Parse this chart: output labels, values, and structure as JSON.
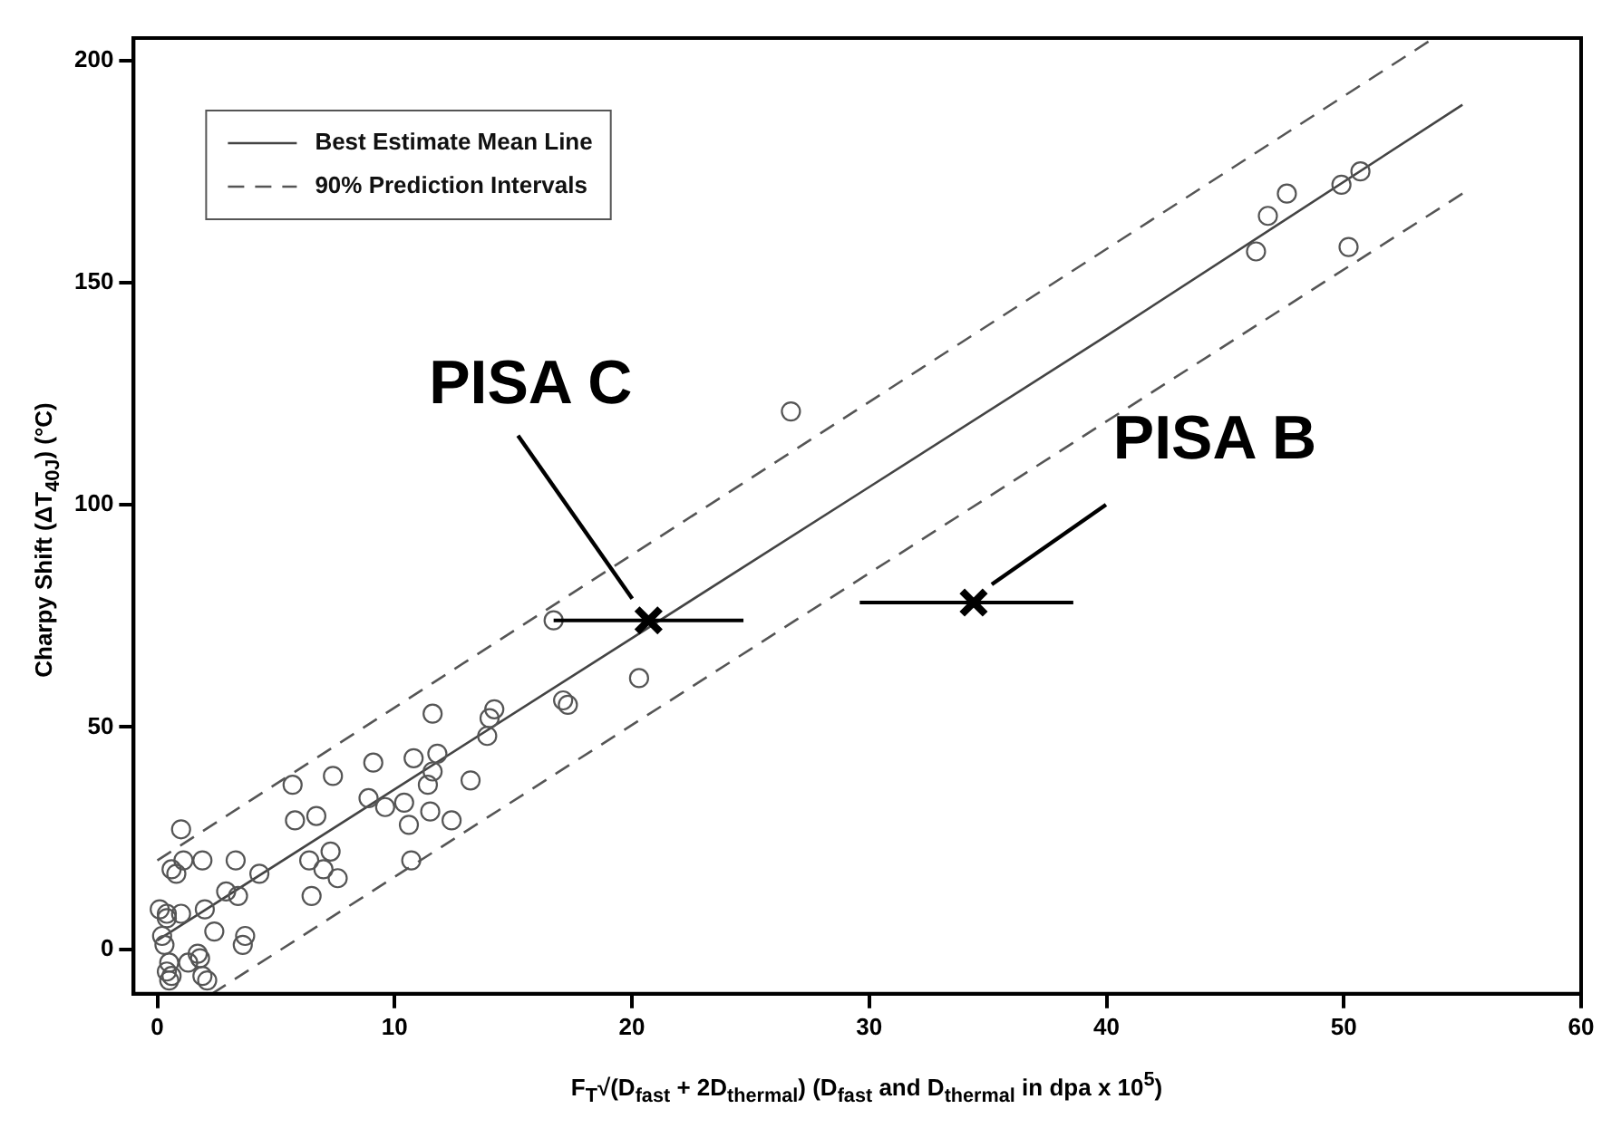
{
  "chart_data": {
    "type": "scatter",
    "xlabel": "F$_{T}$√(D$_{fast}$ + 2D$_{thermal}$) (D$_{fast}$ and D$_{thermal}$ in dpa x 10$^{5}$)",
    "ylabel": "Charpy Shift (ΔT$_{40J}$) (°C)",
    "xlim": [
      -1,
      60
    ],
    "ylim": [
      -10,
      205
    ],
    "xticks": [
      0,
      10,
      20,
      30,
      40,
      50,
      60
    ],
    "yticks": [
      0,
      50,
      100,
      150,
      200
    ],
    "grid": false,
    "legend": "top left",
    "series": [
      {
        "type": "line",
        "name": "Best Estimate Mean Line",
        "color": "#444444",
        "line_style": "solid",
        "marker": "none",
        "x": [
          0,
          10,
          20,
          30,
          40,
          55
        ],
        "values": [
          2,
          36,
          70,
          104,
          138,
          190
        ]
      },
      {
        "type": "line",
        "name": "90% Prediction Intervals",
        "color": "#555555",
        "line_style": "dashed",
        "marker": "none",
        "x": [
          0,
          53.8
        ],
        "values": [
          20,
          205
        ]
      },
      {
        "type": "line",
        "color": "#555555",
        "line_style": "dashed",
        "marker": "none",
        "x": [
          2.3,
          55
        ],
        "values": [
          -10,
          170
        ]
      },
      {
        "type": "scatter",
        "color": "#555555",
        "marker": "circle",
        "x": [
          16.7,
          20.3,
          17.1,
          17.3,
          11.6,
          14.2,
          14.0,
          13.9,
          10.8,
          11.8,
          11.6,
          11.4,
          9.1,
          7.4,
          5.7,
          8.9,
          9.6,
          10.4,
          13.2,
          11.5,
          10.6,
          12.4,
          6.7,
          5.8,
          10.7,
          1.0,
          1.9,
          3.3,
          1.1,
          0.6,
          0.8,
          4.3,
          6.4,
          7.3,
          7.0,
          7.6,
          6.5,
          2.9,
          3.4,
          2.0,
          1.0,
          0.1,
          0.4,
          0.4,
          2.4,
          3.7,
          3.6,
          0.2,
          0.3,
          1.7,
          1.8,
          0.5,
          1.3,
          0.4,
          0.6,
          0.5,
          1.9,
          2.1,
          26.7,
          46.8,
          47.6,
          46.3,
          49.9,
          50.7,
          50.2
        ],
        "values": [
          74,
          61,
          56,
          55,
          53,
          54,
          52,
          48,
          43,
          44,
          40,
          37,
          42,
          39,
          37,
          34,
          32,
          33,
          38,
          31,
          28,
          29,
          30,
          29,
          20,
          27,
          20,
          20,
          20,
          18,
          17,
          17,
          20,
          22,
          18,
          16,
          12,
          13,
          12,
          9,
          8,
          9,
          8,
          7,
          4,
          3,
          1,
          3,
          1,
          -1,
          -2,
          -3,
          -3,
          -5,
          -6,
          -7,
          -6,
          -7,
          121,
          165,
          170,
          157,
          172,
          175,
          158
        ]
      },
      {
        "type": "scatter",
        "color": "#000000",
        "marker": "cross",
        "x": [
          20.7,
          34.4
        ],
        "values": [
          74,
          78
        ],
        "xerrors": [
          [
            16.7,
            24.7
          ],
          [
            29.6,
            38.6
          ]
        ]
      }
    ],
    "annotations": [
      "PISA C",
      "PISA B"
    ]
  }
}
